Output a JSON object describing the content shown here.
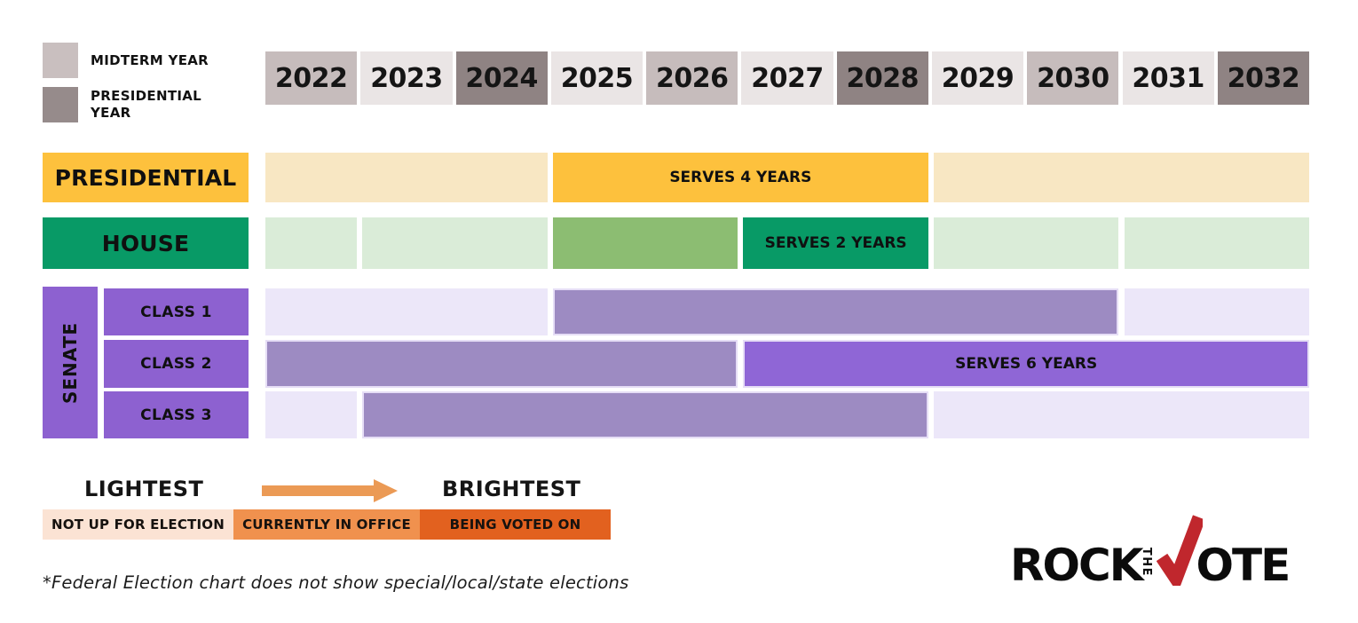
{
  "legend_top": {
    "items": [
      {
        "label": "MIDTERM YEAR",
        "color": "#c9bfbf"
      },
      {
        "label": "PRESIDENTIAL YEAR",
        "color": "#968b8b"
      }
    ]
  },
  "chart_data": {
    "type": "timeline",
    "xlim": [
      2022,
      2032
    ],
    "years": [
      {
        "label": "2022",
        "kind": "midterm"
      },
      {
        "label": "2023",
        "kind": "off"
      },
      {
        "label": "2024",
        "kind": "presidential"
      },
      {
        "label": "2025",
        "kind": "off"
      },
      {
        "label": "2026",
        "kind": "midterm"
      },
      {
        "label": "2027",
        "kind": "off"
      },
      {
        "label": "2028",
        "kind": "presidential"
      },
      {
        "label": "2029",
        "kind": "off"
      },
      {
        "label": "2030",
        "kind": "midterm"
      },
      {
        "label": "2031",
        "kind": "off"
      },
      {
        "label": "2032",
        "kind": "presidential"
      }
    ],
    "year_kind_colors": {
      "off": "#eae5e5",
      "midterm": "#c6bcbc",
      "presidential": "#8f8383"
    },
    "group_label": "SENATE",
    "rows": [
      {
        "id": "presidential",
        "label": "PRESIDENTIAL",
        "label_color": "#fdc13d",
        "segments": [
          {
            "start": 2022,
            "end": 2024,
            "status": "not-up-for-election",
            "color": "#f8e7c3",
            "label": ""
          },
          {
            "start": 2025,
            "end": 2028,
            "status": "being-voted-on",
            "color": "#fdc13d",
            "label": "SERVES 4 YEARS"
          },
          {
            "start": 2029,
            "end": 2032,
            "status": "not-up-for-election",
            "color": "#f8e7c3",
            "label": ""
          }
        ]
      },
      {
        "id": "house",
        "label": "HOUSE",
        "label_color": "#089a66",
        "segments": [
          {
            "start": 2022,
            "end": 2022,
            "status": "not-up-for-election",
            "color": "#daecd8",
            "label": ""
          },
          {
            "start": 2023,
            "end": 2024,
            "status": "not-up-for-election",
            "color": "#daecd8",
            "label": ""
          },
          {
            "start": 2025,
            "end": 2026,
            "status": "currently-in-office",
            "color": "#8cbd72",
            "label": ""
          },
          {
            "start": 2027,
            "end": 2028,
            "status": "being-voted-on",
            "color": "#089a66",
            "label": "SERVES 2 YEARS"
          },
          {
            "start": 2029,
            "end": 2030,
            "status": "not-up-for-election",
            "color": "#daecd8",
            "label": ""
          },
          {
            "start": 2031,
            "end": 2032,
            "status": "not-up-for-election",
            "color": "#daecd8",
            "label": ""
          }
        ]
      },
      {
        "id": "senate-class-1",
        "group": "SENATE",
        "label": "CLASS 1",
        "label_color": "#8d61d0",
        "segments": [
          {
            "start": 2022,
            "end": 2024,
            "status": "not-up-for-election",
            "color": "#ece7f9",
            "label": ""
          },
          {
            "start": 2025,
            "end": 2030,
            "status": "currently-in-office",
            "color": "#9d8bc2",
            "border": "#e6def6",
            "label": ""
          },
          {
            "start": 2031,
            "end": 2032,
            "status": "not-up-for-election",
            "color": "#ece7f9",
            "label": ""
          }
        ]
      },
      {
        "id": "senate-class-2",
        "group": "SENATE",
        "label": "CLASS 2",
        "label_color": "#8d61d0",
        "segments": [
          {
            "start": 2022,
            "end": 2026,
            "status": "currently-in-office",
            "color": "#9d8bc2",
            "border": "#e6def6",
            "label": ""
          },
          {
            "start": 2027,
            "end": 2032,
            "status": "being-voted-on",
            "color": "#8f66d6",
            "border": "#e6def6",
            "label": "SERVES 6 YEARS"
          }
        ]
      },
      {
        "id": "senate-class-3",
        "group": "SENATE",
        "label": "CLASS 3",
        "label_color": "#8d61d0",
        "segments": [
          {
            "start": 2022,
            "end": 2022,
            "status": "not-up-for-election",
            "color": "#ece7f9",
            "label": ""
          },
          {
            "start": 2023,
            "end": 2028,
            "status": "currently-in-office",
            "color": "#9d8bc2",
            "border": "#e6def6",
            "label": ""
          },
          {
            "start": 2029,
            "end": 2032,
            "status": "not-up-for-election",
            "color": "#ece7f9",
            "label": ""
          }
        ]
      }
    ]
  },
  "legend_bottom": {
    "lightest_label": "LIGHTEST",
    "brightest_label": "BRIGHTEST",
    "arrow_color": "#eb9a55",
    "boxes": [
      {
        "label": "NOT UP FOR ELECTION",
        "color": "#fbe3d4"
      },
      {
        "label": "CURRENTLY IN OFFICE",
        "color": "#f0914e"
      },
      {
        "label": "BEING VOTED ON",
        "color": "#e2611f"
      }
    ]
  },
  "footnote": "*Federal Election chart does not show special/local/state elections",
  "logo": {
    "rock": "ROCK",
    "the": "THE",
    "ote": "OTE",
    "check_color": "#c0272d",
    "text_color": "#0b0b0b"
  }
}
